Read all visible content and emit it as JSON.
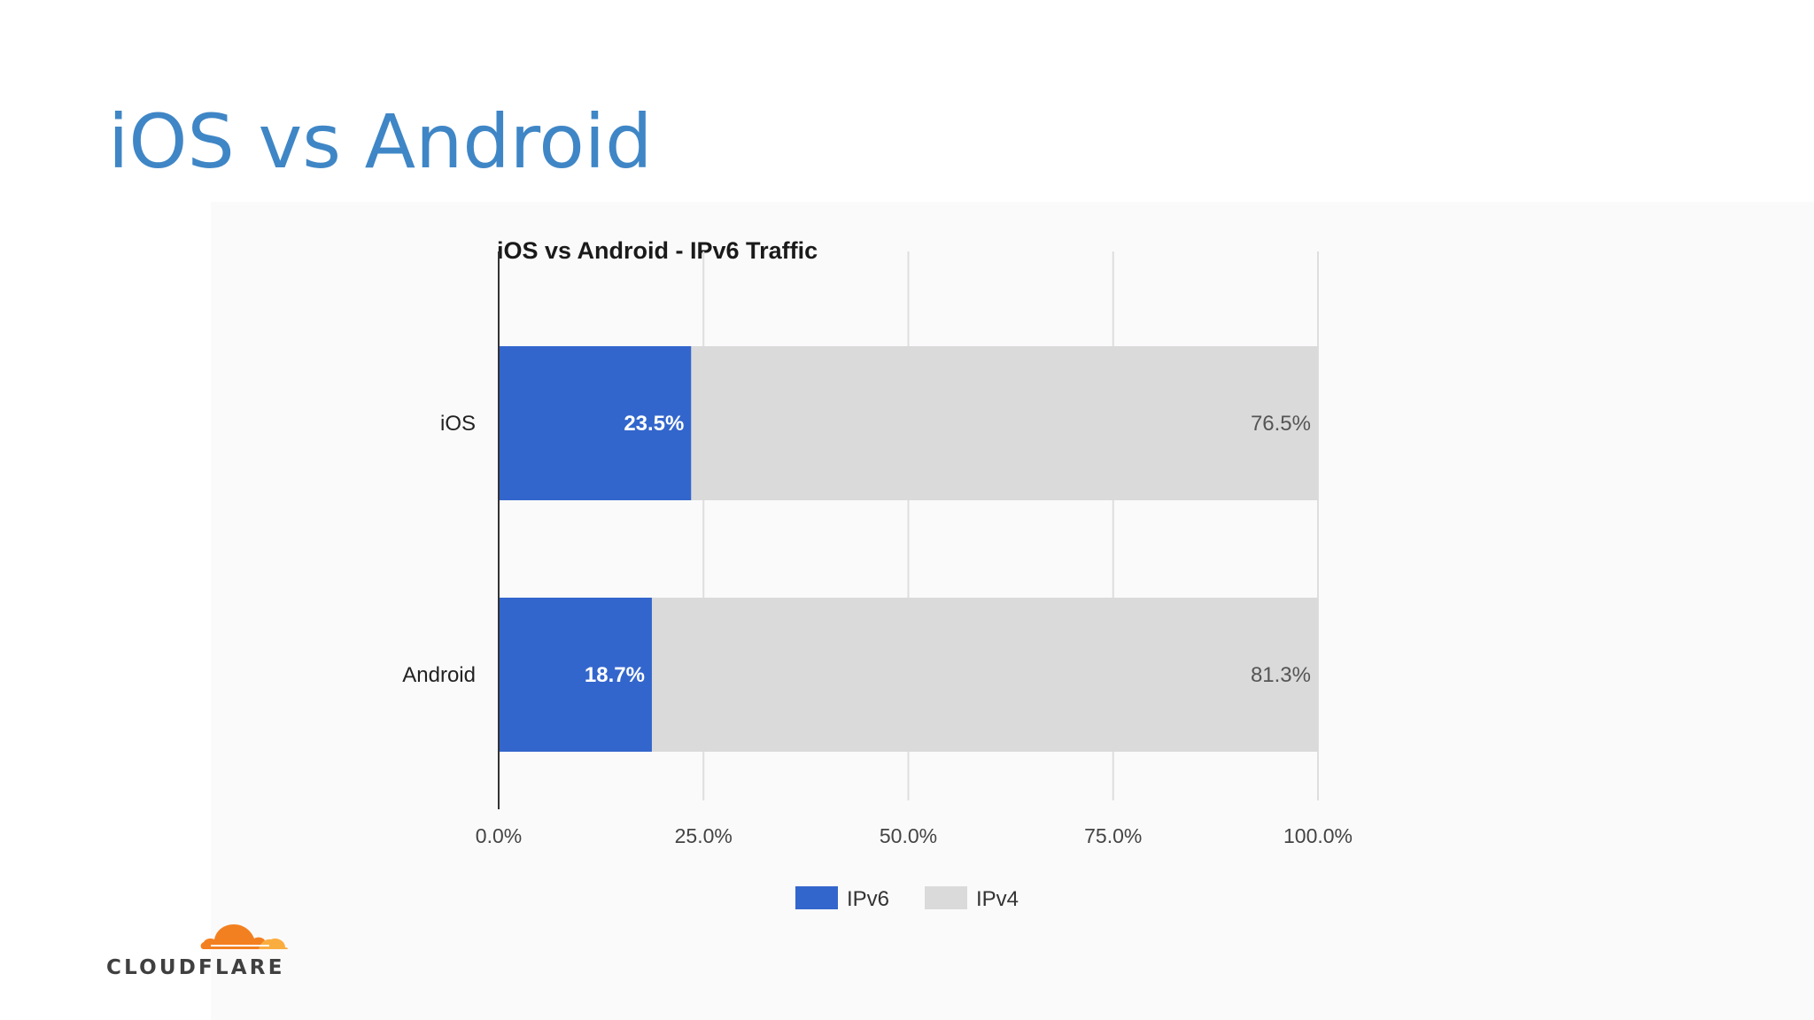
{
  "slide": {
    "title": "iOS vs Android"
  },
  "brand": {
    "logo_text": "CLOUDFLARE",
    "cloud_color": "#f38020",
    "cloud_light": "#faad3f"
  },
  "colors": {
    "ipv6": "#3366cc",
    "ipv4": "#dadada",
    "grid": "#dedede",
    "axis": "#333333"
  },
  "chart_data": {
    "type": "bar",
    "orientation": "horizontal",
    "stacked": true,
    "title": "iOS vs Android - IPv6 Traffic",
    "categories": [
      "iOS",
      "Android"
    ],
    "series": [
      {
        "name": "IPv6",
        "values": [
          23.5,
          18.7
        ],
        "labels": [
          "23.5%",
          "18.7%"
        ]
      },
      {
        "name": "IPv4",
        "values": [
          76.5,
          81.3
        ],
        "labels": [
          "76.5%",
          "81.3%"
        ]
      }
    ],
    "xlim": [
      0,
      100
    ],
    "xticks": [
      0,
      25,
      50,
      75,
      100
    ],
    "xtick_labels": [
      "0.0%",
      "25.0%",
      "50.0%",
      "75.0%",
      "100.0%"
    ],
    "grid": true,
    "legend": "bottom"
  }
}
